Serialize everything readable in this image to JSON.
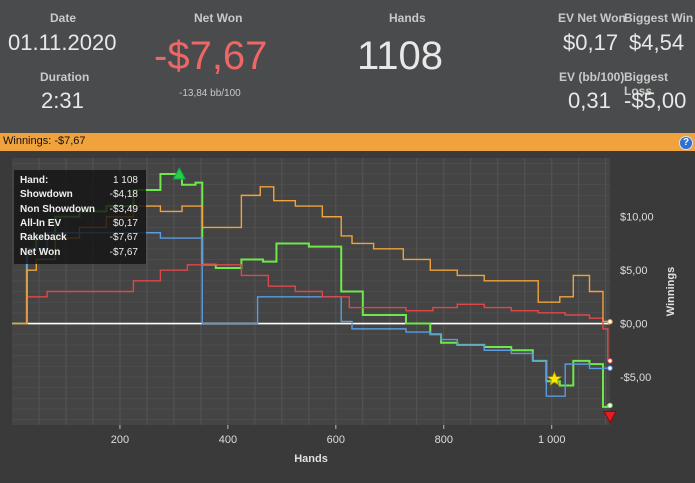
{
  "stats": {
    "date_label": "Date",
    "date_value": "01.11.2020",
    "duration_label": "Duration",
    "duration_value": "2:31",
    "net_won_label": "Net Won",
    "net_won_value": "-$7,67",
    "net_won_sub": "-13,84 bb/100",
    "hands_label": "Hands",
    "hands_value": "1108",
    "ev_net_won_label": "EV Net Won",
    "ev_net_won_value": "$0,17",
    "biggest_win_label": "Biggest Win",
    "biggest_win_value": "$4,54",
    "ev_bb_label": "EV (bb/100)",
    "ev_bb_value": "0,31",
    "biggest_loss_label": "Biggest Loss",
    "biggest_loss_value": "-$5,00"
  },
  "bar": {
    "text": "Winnings: -$7,67",
    "help_icon": "help-icon"
  },
  "colors": {
    "net_won": "#6fe84a",
    "showdown": "#5b9be0",
    "non_showdown": "#e04848",
    "all_in_ev": "#f0a33c",
    "accent_red": "#ee6666"
  },
  "tooltip": {
    "rows": [
      {
        "k": "Hand:",
        "v": "1 108"
      },
      {
        "k": "Showdown",
        "v": "-$4,18"
      },
      {
        "k": "Non Showdown",
        "v": "-$3,49"
      },
      {
        "k": "All-In EV",
        "v": "$0,17"
      },
      {
        "k": "Rakeback",
        "v": "-$7,67"
      },
      {
        "k": "Net Won",
        "v": "-$7,67"
      }
    ]
  },
  "chart_data": {
    "type": "line",
    "xlabel": "Hands",
    "ylabel": "Winnings",
    "xlim": [
      0,
      1108
    ],
    "ylim": [
      -9.5,
      15.5
    ],
    "x_ticks": [
      200,
      400,
      600,
      800,
      1000
    ],
    "x_tick_labels": [
      "200",
      "400",
      "600",
      "800",
      "1 000"
    ],
    "y_ticks": [
      10,
      5,
      0,
      -5
    ],
    "y_tick_labels": [
      "$10,00",
      "$5,00",
      "$0,00",
      "-$5,00"
    ],
    "grid": true,
    "series": [
      {
        "name": "Net Won",
        "color": "#6fe84a",
        "x": [
          0,
          25,
          30,
          60,
          100,
          150,
          200,
          250,
          300,
          330,
          350,
          355,
          400,
          450,
          480,
          500,
          600,
          620,
          640,
          660,
          700,
          760,
          790,
          800,
          850,
          900,
          950,
          980,
          1000,
          1030,
          1050,
          1090,
          1100,
          1108
        ],
        "y": [
          0,
          0,
          7,
          8,
          10,
          10.5,
          11,
          12.5,
          14,
          13,
          13.2,
          5.5,
          5.2,
          6,
          5.8,
          7.5,
          7.2,
          3,
          3,
          0.8,
          0.8,
          0,
          -1,
          -1.8,
          -2,
          -2.2,
          -2.5,
          -3.5,
          -5.4,
          -5.8,
          -3.5,
          -3.8,
          -7.8,
          -7.67
        ]
      },
      {
        "name": "Showdown",
        "color": "#5b9be0",
        "x": [
          0,
          25,
          30,
          100,
          200,
          250,
          300,
          350,
          355,
          400,
          430,
          450,
          460,
          500,
          600,
          620,
          640,
          700,
          760,
          790,
          800,
          850,
          900,
          950,
          980,
          1000,
          1050,
          1090,
          1100,
          1108
        ],
        "y": [
          0,
          0,
          7,
          8.5,
          8.5,
          8.5,
          8,
          8,
          0,
          0,
          0,
          0,
          2.5,
          2.5,
          2.5,
          0.2,
          -0.5,
          -0.5,
          -0.8,
          -1,
          -1.5,
          -2,
          -2.5,
          -2.8,
          -3.5,
          -6.8,
          -3.8,
          -4.2,
          -4.18,
          -4.18
        ]
      },
      {
        "name": "Non Showdown",
        "color": "#e04848",
        "x": [
          0,
          25,
          30,
          100,
          200,
          250,
          300,
          350,
          400,
          450,
          500,
          550,
          600,
          650,
          700,
          760,
          800,
          850,
          900,
          950,
          1000,
          1050,
          1090,
          1100,
          1108
        ],
        "y": [
          0,
          0,
          2.5,
          3,
          3,
          4,
          5,
          5.5,
          5.5,
          4.5,
          3.5,
          3,
          2.5,
          1.5,
          1.5,
          1.2,
          1.5,
          1.8,
          1.5,
          1.2,
          1,
          0.8,
          0.5,
          -0.5,
          -3.49
        ]
      },
      {
        "name": "All-In EV",
        "color": "#f0a33c",
        "x": [
          0,
          25,
          30,
          60,
          100,
          150,
          200,
          250,
          300,
          330,
          350,
          355,
          400,
          450,
          470,
          500,
          550,
          600,
          620,
          640,
          700,
          750,
          800,
          850,
          900,
          950,
          1000,
          1030,
          1050,
          1090,
          1100,
          1108
        ],
        "y": [
          0,
          0,
          5,
          6,
          8,
          9,
          10,
          11,
          10.5,
          11,
          11,
          9,
          9,
          12,
          12.8,
          11.5,
          11,
          10,
          8.2,
          7.5,
          7,
          6,
          5,
          4.5,
          4,
          4,
          2,
          2.5,
          4.5,
          3,
          0.2,
          0.17
        ]
      }
    ],
    "markers": [
      {
        "kind": "triangle-up",
        "color": "#2ecc40",
        "x": 310,
        "y": 14
      },
      {
        "kind": "star",
        "color": "#ffe800",
        "x": 1005,
        "y": -5.2
      },
      {
        "kind": "triangle-down",
        "color": "#e02020",
        "x": 1108,
        "y": -8.7
      }
    ]
  }
}
